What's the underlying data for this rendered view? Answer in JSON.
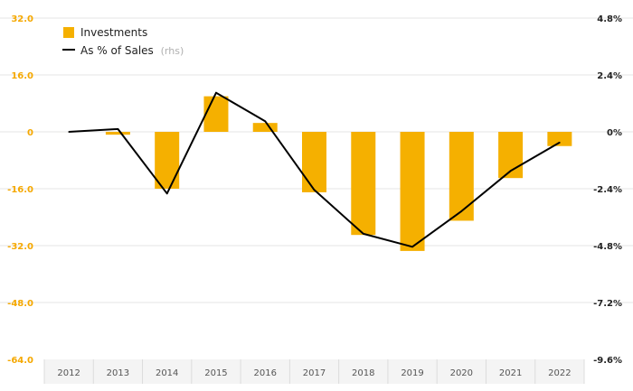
{
  "chart_data": {
    "type": "bar",
    "categories": [
      "2012",
      "2013",
      "2014",
      "2015",
      "2016",
      "2017",
      "2018",
      "2019",
      "2020",
      "2021",
      "2022"
    ],
    "series": [
      {
        "name": "Investments",
        "type": "bar",
        "axis": "left",
        "color": "#f5b000",
        "values": [
          0.0,
          -0.8,
          -16.0,
          10.0,
          2.5,
          -17.0,
          -29.0,
          -33.5,
          -25.0,
          -13.0,
          -4.0
        ]
      },
      {
        "name": "As % of Sales",
        "type": "line",
        "axis": "right",
        "color": "#000000",
        "values": [
          0.0,
          0.12,
          -2.6,
          1.65,
          0.45,
          -2.45,
          -4.3,
          -4.85,
          -3.35,
          -1.65,
          -0.45
        ]
      }
    ],
    "left_axis": {
      "ylim": [
        -64,
        32
      ],
      "ticks": [
        32,
        16,
        0,
        -16,
        -32,
        -48,
        -64
      ],
      "tick_labels": [
        "32.0",
        "16.0",
        "0",
        "-16.0",
        "-32.0",
        "-48.0",
        "-64.0"
      ],
      "color": "#f5a800"
    },
    "right_axis": {
      "ylim": [
        -9.6,
        4.8
      ],
      "ticks": [
        4.8,
        2.4,
        0,
        -2.4,
        -4.8,
        -7.2,
        -9.6
      ],
      "tick_labels": [
        "4.8%",
        "2.4%",
        "0%",
        "-2.4%",
        "-4.8%",
        "-7.2%",
        "-9.6%"
      ],
      "color": "#222222"
    },
    "legend": {
      "position": "top-left",
      "items": [
        {
          "label": "Investments",
          "marker": "square",
          "color": "#f5b000"
        },
        {
          "label": "As % of Sales",
          "suffix": "(rhs)",
          "marker": "line",
          "color": "#000000"
        }
      ]
    },
    "grid": true,
    "title": "",
    "xlabel": "",
    "ylabel": ""
  }
}
